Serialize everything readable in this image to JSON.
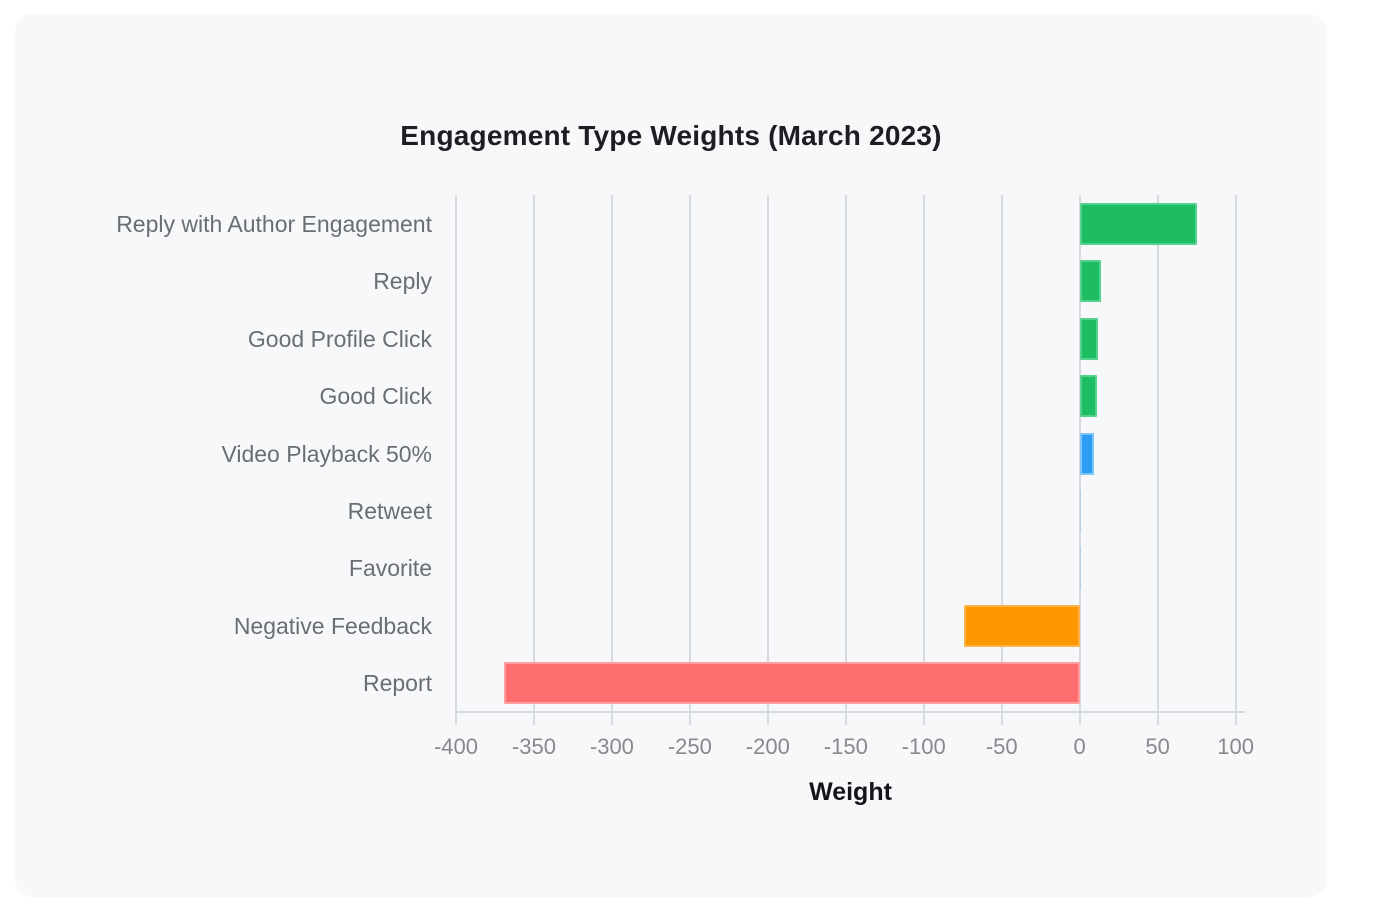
{
  "chart_data": {
    "type": "bar",
    "orientation": "horizontal",
    "title": "Engagement Type Weights (March 2023)",
    "xlabel": "Weight",
    "categories": [
      "Reply with Author Engagement",
      "Reply",
      "Good Profile Click",
      "Good Click",
      "Video Playback 50%",
      "Retweet",
      "Favorite",
      "Negative Feedback",
      "Report"
    ],
    "values": [
      75,
      13.5,
      12,
      11,
      9,
      1,
      0.5,
      -74,
      -369
    ],
    "bar_fill_colors": [
      "#1fbd63",
      "#1fbd63",
      "#1fbd63",
      "#1fbd63",
      "#2b9df3",
      "#aed1ec",
      "#aed1ec",
      "#fd9800",
      "#fe6d6d"
    ],
    "bar_border_colors": [
      "#55d18e",
      "#55d18e",
      "#55d18e",
      "#55d18e",
      "#7fc4f8",
      "#cfe4f4",
      "#cfe4f4",
      "#fdb44b",
      "#fe9f9f"
    ],
    "xlim": [
      -400,
      100
    ],
    "xticks": [
      -400,
      -350,
      -300,
      -250,
      -200,
      -150,
      -100,
      -50,
      0,
      50,
      100
    ],
    "xtick_labels": [
      "-400",
      "-350",
      "-300",
      "-250",
      "-200",
      "-150",
      "-100",
      "-50",
      "0",
      "50",
      "100"
    ],
    "grid": true,
    "legend": "none",
    "card_background": "#f7f8fa",
    "grid_color": "#d7dade",
    "colors_legend": {
      "strong_positive": "#1fbd63",
      "small_positive": "#2b9df3",
      "tiny_positive": "#aed1ec",
      "moderate_negative": "#fd9800",
      "strong_negative": "#fe6d6d"
    }
  }
}
